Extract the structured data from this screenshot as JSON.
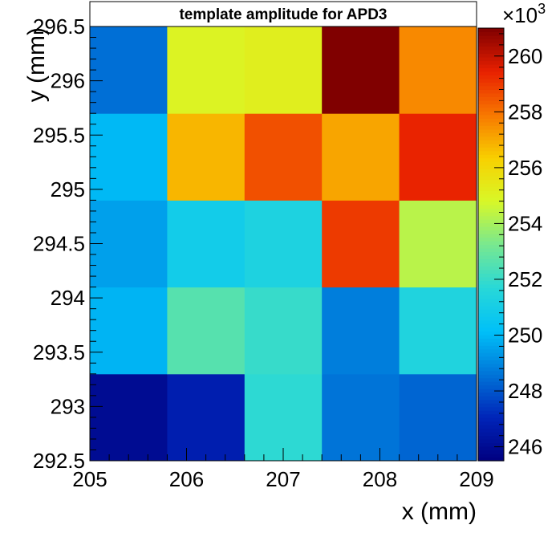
{
  "chart_data": {
    "type": "heatmap",
    "title": "template amplitude for APD3",
    "xlabel": "x (mm)",
    "ylabel": "y (mm)",
    "x_edges": [
      205,
      205.8,
      206.6,
      207.4,
      208.2,
      209
    ],
    "y_edges": [
      292.5,
      293.3,
      294.1,
      294.9,
      295.7,
      296.5
    ],
    "xlim": [
      205,
      209
    ],
    "ylim": [
      292.5,
      296.5
    ],
    "x_ticks": [
      "205",
      "206",
      "207",
      "208",
      "209"
    ],
    "y_ticks": [
      "292.5",
      "293",
      "293.5",
      "294",
      "294.5",
      "295",
      "295.5",
      "296",
      "296.5"
    ],
    "values": [
      [
        246.0,
        246.8,
        251.8,
        248.6,
        248.3
      ],
      [
        249.9,
        252.6,
        252.0,
        248.8,
        251.4
      ],
      [
        249.5,
        250.9,
        251.3,
        259.0,
        254.3
      ],
      [
        250.0,
        256.8,
        258.6,
        257.1,
        259.4
      ],
      [
        248.5,
        255.0,
        255.2,
        261.0,
        257.6
      ]
    ],
    "zlim": [
      245.5,
      261.0
    ],
    "colorbar_ticks": [
      "246",
      "248",
      "250",
      "252",
      "254",
      "256",
      "258",
      "260"
    ],
    "colorbar_multiplier": "×10",
    "colorbar_exponent": "3",
    "grid": false,
    "palette": [
      "#000080",
      "#0024b8",
      "#0074d8",
      "#00c0f8",
      "#28d8d8",
      "#78e890",
      "#d8f828",
      "#f8d000",
      "#f87800",
      "#e82000",
      "#800000"
    ]
  }
}
